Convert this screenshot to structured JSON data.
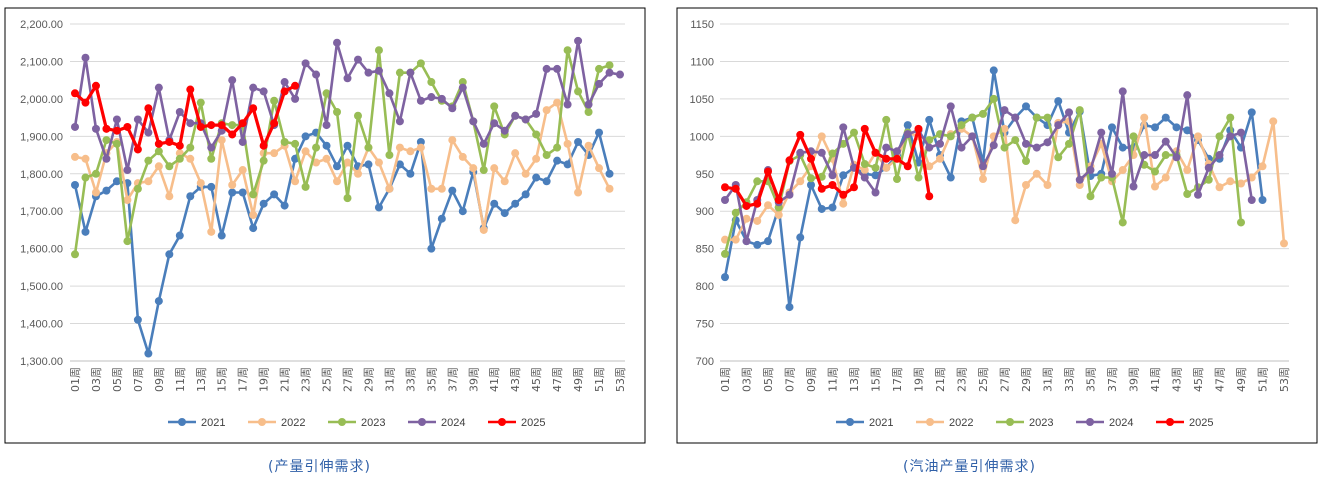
{
  "colors": {
    "2021": "#4a7ebb",
    "2022": "#f7be8b",
    "2023": "#98bd55",
    "2024": "#7e62a1",
    "2025": "#ff0000"
  },
  "chart_data": [
    {
      "type": "line",
      "caption": "(产量引伸需求)",
      "ylim": [
        1300,
        2200
      ],
      "yticks": [
        "1,300.00",
        "1,400.00",
        "1,500.00",
        "1,600.00",
        "1,700.00",
        "1,800.00",
        "1,900.00",
        "2,000.00",
        "2,100.00",
        "2,200.00"
      ],
      "ytick_values": [
        1300,
        1400,
        1500,
        1600,
        1700,
        1800,
        1900,
        2000,
        2100,
        2200
      ],
      "xticks": [
        "01周",
        "03周",
        "05周",
        "07周",
        "09周",
        "11周",
        "13周",
        "15周",
        "17周",
        "19周",
        "21周",
        "23周",
        "25周",
        "27周",
        "29周",
        "31周",
        "33周",
        "35周",
        "37周",
        "39周",
        "41周",
        "43周",
        "45周",
        "47周",
        "49周",
        "51周",
        "53周"
      ],
      "legend_position": "bottom",
      "grid": true,
      "series": [
        {
          "name": "2021",
          "values": [
            1770,
            1645,
            1740,
            1755,
            1780,
            1775,
            1410,
            1320,
            1460,
            1585,
            1635,
            1740,
            1765,
            1765,
            1635,
            1750,
            1750,
            1655,
            1720,
            1745,
            1715,
            1840,
            1900,
            1910,
            1875,
            1820,
            1875,
            1820,
            1825,
            1710,
            1760,
            1825,
            1800,
            1885,
            1600,
            1680,
            1755,
            1700,
            1805,
            1655,
            1720,
            1695,
            1720,
            1745,
            1790,
            1780,
            1835,
            1825,
            1885,
            1850,
            1910,
            1800
          ]
        },
        {
          "name": "2022",
          "values": [
            1845,
            1840,
            1750,
            1855,
            1885,
            1730,
            1775,
            1780,
            1820,
            1740,
            1855,
            1840,
            1775,
            1645,
            1890,
            1770,
            1810,
            1690,
            1855,
            1855,
            1875,
            1780,
            1860,
            1830,
            1840,
            1780,
            1830,
            1800,
            1870,
            1830,
            1760,
            1870,
            1860,
            1870,
            1760,
            1760,
            1890,
            1845,
            1815,
            1650,
            1815,
            1780,
            1855,
            1800,
            1840,
            1970,
            1990,
            1880,
            1750,
            1875,
            1815,
            1760
          ]
        },
        {
          "name": "2023",
          "values": [
            1585,
            1790,
            1800,
            1890,
            1880,
            1620,
            1760,
            1835,
            1860,
            1820,
            1840,
            1870,
            1990,
            1840,
            1935,
            1930,
            1930,
            1745,
            1835,
            1995,
            1885,
            1880,
            1765,
            1870,
            2015,
            1965,
            1735,
            1955,
            1870,
            2130,
            1850,
            2070,
            2070,
            2095,
            2045,
            1995,
            1980,
            2045,
            1940,
            1810,
            1980,
            1905,
            1955,
            1945,
            1905,
            1850,
            1870,
            2130,
            2020,
            1965,
            2080,
            2090
          ]
        },
        {
          "name": "2024",
          "values": [
            1925,
            2110,
            1920,
            1840,
            1945,
            1810,
            1945,
            1910,
            2030,
            1890,
            1965,
            1935,
            1935,
            1870,
            1915,
            2050,
            1885,
            2030,
            2020,
            1930,
            2045,
            2000,
            2095,
            2065,
            1930,
            2150,
            2055,
            2105,
            2070,
            2075,
            2015,
            1940,
            2070,
            1995,
            2005,
            2000,
            1975,
            2030,
            1940,
            1880,
            1935,
            1915,
            1955,
            1945,
            1960,
            2080,
            2080,
            1985,
            2155,
            1985,
            2040,
            2070,
            2065
          ]
        },
        {
          "name": "2025",
          "values": [
            2015,
            1990,
            2035,
            1920,
            1915,
            1925,
            1865,
            1975,
            1880,
            1885,
            1875,
            2025,
            1925,
            1930,
            1930,
            1905,
            1935,
            1975,
            1875,
            1935,
            2020,
            2035
          ]
        }
      ]
    },
    {
      "type": "line",
      "caption": "(汽油产量引伸需求)",
      "ylim": [
        700,
        1150
      ],
      "yticks": [
        "700",
        "750",
        "800",
        "850",
        "900",
        "950",
        "1000",
        "1050",
        "1100",
        "1150"
      ],
      "ytick_values": [
        700,
        750,
        800,
        850,
        900,
        950,
        1000,
        1050,
        1100,
        1150
      ],
      "xticks": [
        "01周",
        "03周",
        "05周",
        "07周",
        "09周",
        "11周",
        "13周",
        "15周",
        "17周",
        "19周",
        "21周",
        "23周",
        "25周",
        "27周",
        "29周",
        "31周",
        "33周",
        "35周",
        "37周",
        "39周",
        "41周",
        "43周",
        "45周",
        "47周",
        "49周",
        "51周",
        "53周"
      ],
      "legend_position": "bottom",
      "grid": true,
      "series": [
        {
          "name": "2021",
          "values": [
            812,
            888,
            860,
            855,
            860,
            905,
            772,
            865,
            935,
            903,
            905,
            948,
            958,
            950,
            948,
            958,
            975,
            1015,
            965,
            1022,
            975,
            945,
            1020,
            1025,
            965,
            1088,
            1005,
            1025,
            1040,
            1025,
            1015,
            1047,
            1005,
            1033,
            947,
            950,
            1012,
            985,
            985,
            1015,
            1012,
            1025,
            1012,
            1008,
            995,
            970,
            970,
            1008,
            985,
            1032,
            915
          ]
        },
        {
          "name": "2022",
          "values": [
            862,
            862,
            890,
            887,
            908,
            895,
            925,
            940,
            960,
            1000,
            970,
            910,
            962,
            955,
            978,
            958,
            970,
            1005,
            1000,
            960,
            970,
            1003,
            1010,
            1000,
            943,
            1000,
            1010,
            888,
            935,
            950,
            935,
            1018,
            1020,
            935,
            960,
            990,
            940,
            955,
            975,
            1025,
            933,
            945,
            980,
            955,
            1000,
            963,
            932,
            940,
            937,
            945,
            960,
            1020,
            857
          ]
        },
        {
          "name": "2023",
          "values": [
            843,
            898,
            912,
            940,
            940,
            905,
            967,
            975,
            944,
            946,
            977,
            990,
            1005,
            963,
            958,
            1022,
            943,
            1005,
            945,
            995,
            1003,
            1000,
            1015,
            1025,
            1030,
            1050,
            985,
            995,
            967,
            1025,
            1025,
            972,
            990,
            1035,
            920,
            945,
            945,
            885,
            1000,
            962,
            953,
            975,
            975,
            923,
            932,
            942,
            1000,
            1025,
            885
          ]
        },
        {
          "name": "2024",
          "values": [
            915,
            935,
            860,
            915,
            955,
            912,
            922,
            978,
            980,
            978,
            948,
            1012,
            958,
            945,
            925,
            985,
            980,
            1003,
            1008,
            985,
            990,
            1040,
            985,
            1000,
            960,
            988,
            1035,
            1025,
            990,
            985,
            992,
            1015,
            1032,
            942,
            955,
            1005,
            950,
            1060,
            933,
            975,
            975,
            993,
            972,
            1055,
            922,
            958,
            975,
            1000,
            1005,
            915
          ]
        },
        {
          "name": "2025",
          "values": [
            932,
            930,
            907,
            910,
            953,
            915,
            968,
            1002,
            970,
            930,
            935,
            922,
            932,
            1010,
            978,
            970,
            970,
            960,
            1010,
            920
          ]
        }
      ]
    }
  ]
}
